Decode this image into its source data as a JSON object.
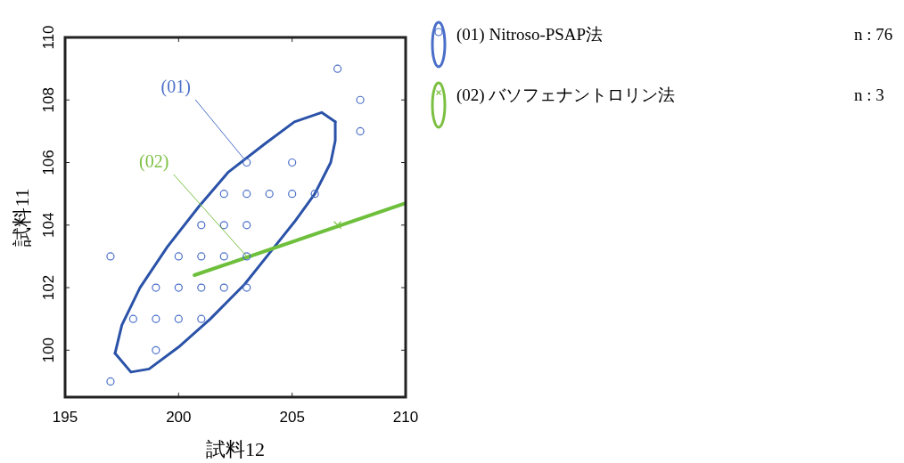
{
  "chart_data": {
    "type": "scatter",
    "xlabel": "試料12",
    "ylabel": "試料11",
    "xlim": [
      195,
      210
    ],
    "ylim": [
      98.5,
      110
    ],
    "xticks": [
      195,
      200,
      205,
      210
    ],
    "yticks": [
      100,
      102,
      104,
      106,
      108,
      110
    ],
    "grid": false,
    "legend": "right",
    "series": [
      {
        "name": "(01) Nitroso-PSAP法",
        "marker": "circle",
        "color": "#4a6fc8",
        "x": [
          207,
          208,
          208,
          203,
          205,
          202,
          203,
          204,
          205,
          206,
          201,
          202,
          203,
          197,
          200,
          201,
          202,
          203,
          199,
          200,
          201,
          202,
          203,
          198,
          199,
          200,
          201,
          199,
          197
        ],
        "values": [
          109,
          108,
          107,
          106,
          106,
          105,
          105,
          105,
          105,
          105,
          104,
          104,
          104,
          103,
          103,
          103,
          103,
          103,
          102,
          102,
          102,
          102,
          102,
          101,
          101,
          101,
          101,
          100,
          99
        ]
      },
      {
        "type": "line",
        "marker": "none",
        "color": "#2a52a8",
        "x": [
          197.2,
          197.5,
          198.3,
          199.5,
          200.9,
          202.2,
          203.8,
          205.1,
          206.3,
          206.9
        ],
        "values": [
          99.9,
          100.8,
          102.0,
          103.3,
          104.6,
          105.7,
          106.6,
          107.3,
          107.6,
          107.3
        ]
      },
      {
        "type": "line",
        "marker": "none",
        "color": "#2a52a8",
        "x": [
          197.2,
          197.9,
          198.7,
          200.0,
          201.4,
          202.9,
          204.0,
          205.1,
          206.0,
          206.7,
          206.9,
          206.9
        ],
        "values": [
          99.9,
          99.3,
          99.4,
          100.1,
          101.0,
          102.1,
          103.1,
          104.1,
          105.0,
          106.0,
          106.7,
          107.3
        ]
      },
      {
        "name": "(02) バソフェナントロリン法",
        "marker": "cross",
        "color": "#7cc043",
        "x": [
          207
        ],
        "values": [
          104
        ]
      },
      {
        "type": "line",
        "marker": "none",
        "color": "#6dbf3c",
        "x": [
          200.7,
          210
        ],
        "values": [
          102.4,
          104.7
        ]
      }
    ],
    "annotations": [
      {
        "text": "(01)",
        "x": 202.9,
        "y": 106.1
      },
      {
        "text": "(02)",
        "x": 203,
        "y": 103
      },
      "n : 76",
      "n : 3"
    ]
  }
}
